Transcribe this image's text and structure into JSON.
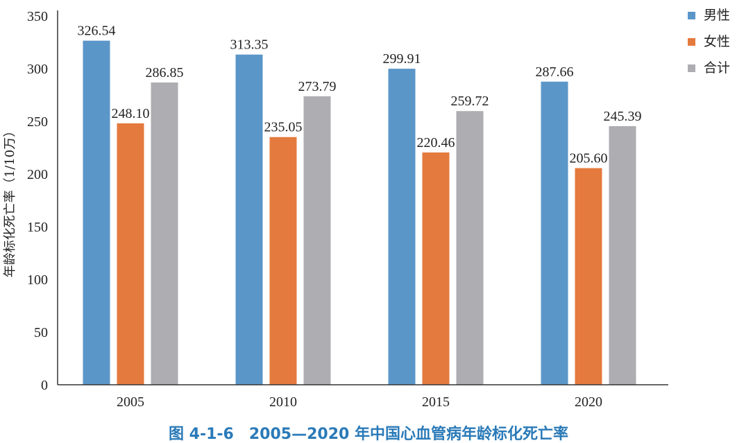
{
  "chart_data": {
    "type": "bar",
    "title": "图 4-1-6　2005—2020 年中国心血管病年龄标化死亡率",
    "xlabel": "",
    "ylabel": "年龄标化死亡率（1/10万）",
    "categories": [
      "2005",
      "2010",
      "2015",
      "2020"
    ],
    "ylim": [
      0,
      350
    ],
    "yticks": [
      "0",
      "50",
      "100",
      "150",
      "200",
      "250",
      "300",
      "350"
    ],
    "grid": false,
    "legend_position": "top-right",
    "series": [
      {
        "name": "男性",
        "color": "#5b96c9",
        "values": [
          326.54,
          313.35,
          299.91,
          287.66
        ],
        "labels": [
          "326.54",
          "313.35",
          "299.91",
          "287.66"
        ]
      },
      {
        "name": "女性",
        "color": "#e47a3e",
        "values": [
          248.1,
          235.05,
          220.46,
          205.6
        ],
        "labels": [
          "248.10",
          "235.05",
          "220.46",
          "205.60"
        ]
      },
      {
        "name": "合计",
        "color": "#adadb2",
        "values": [
          286.85,
          273.79,
          259.72,
          245.39
        ],
        "labels": [
          "286.85",
          "273.79",
          "259.72",
          "245.39"
        ]
      }
    ]
  }
}
